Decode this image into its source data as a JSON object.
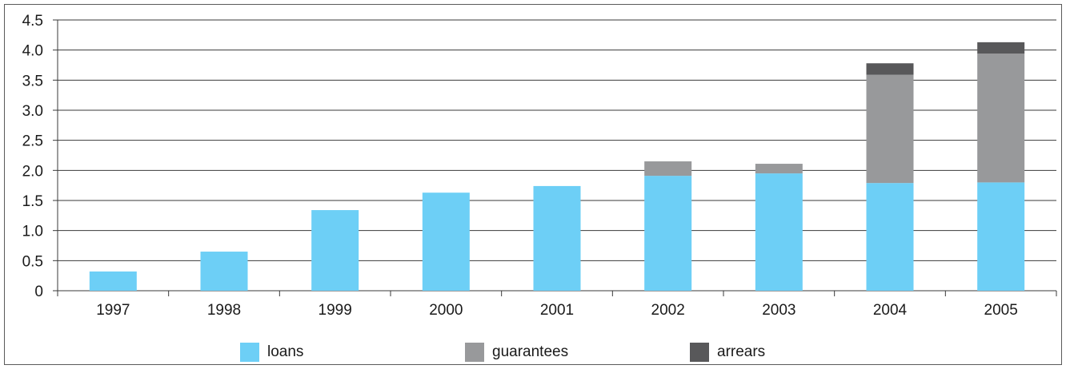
{
  "chart_data": {
    "type": "bar",
    "stacked": true,
    "categories": [
      "1997",
      "1998",
      "1999",
      "2000",
      "2001",
      "2002",
      "2003",
      "2004",
      "2005"
    ],
    "series": [
      {
        "name": "loans",
        "color": "#6dcff6",
        "values": [
          0.32,
          0.65,
          1.34,
          1.63,
          1.74,
          1.91,
          1.95,
          1.79,
          1.8
        ]
      },
      {
        "name": "guarantees",
        "color": "#98999b",
        "values": [
          0,
          0,
          0,
          0,
          0,
          0.24,
          0.16,
          1.8,
          2.14
        ]
      },
      {
        "name": "arrears",
        "color": "#58585a",
        "values": [
          0,
          0,
          0,
          0,
          0,
          0,
          0,
          0.19,
          0.19
        ]
      }
    ],
    "yticks": [
      "0",
      "0.5",
      "1.0",
      "1.5",
      "2.0",
      "2.5",
      "3.0",
      "3.5",
      "4.0",
      "4.5"
    ],
    "ylim": [
      0,
      4.5
    ],
    "grid": true,
    "legend_position": "bottom"
  }
}
